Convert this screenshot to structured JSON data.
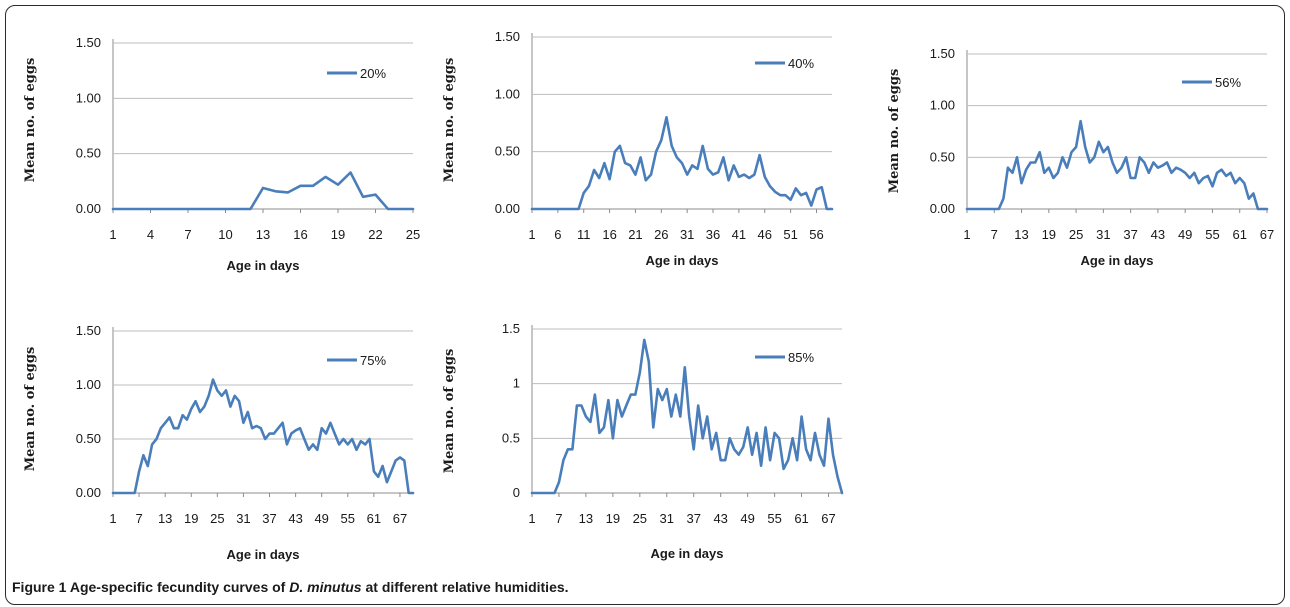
{
  "caption": {
    "label": "Figure 1",
    "text_before": "Age-specific fecundity curves of",
    "species": "D. minutus",
    "text_after": "at different relative humidities."
  },
  "colors": {
    "line": "#4a7ebb",
    "grid": "#bdbdbd",
    "axis": "#8c8c8c"
  },
  "chart_data": [
    {
      "type": "line",
      "series": [
        {
          "name": "20%"
        }
      ],
      "xlabel": "Age in days",
      "ylabel": "Mean no. of eggs",
      "ylim": [
        0,
        1.5
      ],
      "xlim": [
        1,
        25
      ],
      "xticks": [
        "1",
        "4",
        "7",
        "10",
        "13",
        "16",
        "19",
        "22",
        "25"
      ],
      "yticks": [
        "0.00",
        "0.50",
        "1.00",
        "1.50"
      ],
      "grid": "horizontal",
      "legend": "top-right",
      "x": [
        1,
        2,
        3,
        4,
        5,
        6,
        7,
        8,
        9,
        10,
        11,
        12,
        13,
        14,
        15,
        16,
        17,
        18,
        19,
        20,
        21,
        22,
        23,
        24,
        25
      ],
      "values": [
        0,
        0,
        0,
        0,
        0,
        0,
        0,
        0,
        0,
        0,
        0,
        0,
        0.19,
        0.16,
        0.15,
        0.21,
        0.21,
        0.29,
        0.22,
        0.33,
        0.11,
        0.13,
        0,
        0,
        0
      ]
    },
    {
      "type": "line",
      "series": [
        {
          "name": "40%"
        }
      ],
      "xlabel": "Age in days",
      "ylabel": "Mean no. of eggs",
      "ylim": [
        0,
        1.5
      ],
      "xlim": [
        1,
        59
      ],
      "xticks": [
        "1",
        "6",
        "11",
        "16",
        "21",
        "26",
        "31",
        "36",
        "41",
        "46",
        "51",
        "56"
      ],
      "yticks": [
        "0.00",
        "0.50",
        "1.00",
        "1.50"
      ],
      "grid": "horizontal",
      "legend": "top-right",
      "x": [
        1,
        2,
        3,
        4,
        5,
        6,
        7,
        8,
        9,
        10,
        11,
        12,
        13,
        14,
        15,
        16,
        17,
        18,
        19,
        20,
        21,
        22,
        23,
        24,
        25,
        26,
        27,
        28,
        29,
        30,
        31,
        32,
        33,
        34,
        35,
        36,
        37,
        38,
        39,
        40,
        41,
        42,
        43,
        44,
        45,
        46,
        47,
        48,
        49,
        50,
        51,
        52,
        53,
        54,
        55,
        56,
        57,
        58,
        59
      ],
      "values": [
        0,
        0,
        0,
        0,
        0,
        0,
        0,
        0,
        0,
        0,
        0.14,
        0.2,
        0.34,
        0.27,
        0.4,
        0.26,
        0.5,
        0.55,
        0.4,
        0.38,
        0.3,
        0.45,
        0.25,
        0.3,
        0.5,
        0.6,
        0.8,
        0.55,
        0.45,
        0.4,
        0.3,
        0.38,
        0.35,
        0.55,
        0.35,
        0.3,
        0.32,
        0.45,
        0.25,
        0.38,
        0.28,
        0.3,
        0.27,
        0.3,
        0.47,
        0.28,
        0.2,
        0.15,
        0.12,
        0.12,
        0.08,
        0.18,
        0.12,
        0.14,
        0.03,
        0.17,
        0.19,
        0,
        0
      ]
    },
    {
      "type": "line",
      "series": [
        {
          "name": "56%"
        }
      ],
      "xlabel": "Age in days",
      "ylabel": "Mean no. of eggs",
      "ylim": [
        0,
        1.5
      ],
      "xlim": [
        1,
        67
      ],
      "xticks": [
        "1",
        "7",
        "13",
        "19",
        "25",
        "31",
        "37",
        "43",
        "49",
        "55",
        "61",
        "67"
      ],
      "yticks": [
        "0.00",
        "0.50",
        "1.00",
        "1.50"
      ],
      "grid": "horizontal",
      "legend": "top-right",
      "x": [
        1,
        2,
        3,
        4,
        5,
        6,
        7,
        8,
        9,
        10,
        11,
        12,
        13,
        14,
        15,
        16,
        17,
        18,
        19,
        20,
        21,
        22,
        23,
        24,
        25,
        26,
        27,
        28,
        29,
        30,
        31,
        32,
        33,
        34,
        35,
        36,
        37,
        38,
        39,
        40,
        41,
        42,
        43,
        44,
        45,
        46,
        47,
        48,
        49,
        50,
        51,
        52,
        53,
        54,
        55,
        56,
        57,
        58,
        59,
        60,
        61,
        62,
        63,
        64,
        65,
        66,
        67
      ],
      "values": [
        0,
        0,
        0,
        0,
        0,
        0,
        0,
        0,
        0.1,
        0.4,
        0.35,
        0.5,
        0.25,
        0.38,
        0.45,
        0.45,
        0.55,
        0.35,
        0.4,
        0.3,
        0.35,
        0.5,
        0.4,
        0.55,
        0.6,
        0.85,
        0.6,
        0.45,
        0.5,
        0.65,
        0.55,
        0.6,
        0.45,
        0.35,
        0.4,
        0.5,
        0.3,
        0.3,
        0.5,
        0.45,
        0.35,
        0.45,
        0.4,
        0.42,
        0.45,
        0.35,
        0.4,
        0.38,
        0.35,
        0.3,
        0.35,
        0.25,
        0.3,
        0.32,
        0.22,
        0.35,
        0.38,
        0.32,
        0.35,
        0.25,
        0.3,
        0.25,
        0.1,
        0.15,
        0,
        0,
        0
      ]
    },
    {
      "type": "line",
      "series": [
        {
          "name": "75%"
        }
      ],
      "xlabel": "Age in days",
      "ylabel": "Mean no. of eggs",
      "ylim": [
        0,
        1.5
      ],
      "xlim": [
        1,
        70
      ],
      "xticks": [
        "1",
        "7",
        "13",
        "19",
        "25",
        "31",
        "37",
        "43",
        "49",
        "55",
        "61",
        "67"
      ],
      "yticks": [
        "0.00",
        "0.50",
        "1.00",
        "1.50"
      ],
      "grid": "horizontal",
      "legend": "top-right",
      "x": [
        1,
        2,
        3,
        4,
        5,
        6,
        7,
        8,
        9,
        10,
        11,
        12,
        13,
        14,
        15,
        16,
        17,
        18,
        19,
        20,
        21,
        22,
        23,
        24,
        25,
        26,
        27,
        28,
        29,
        30,
        31,
        32,
        33,
        34,
        35,
        36,
        37,
        38,
        39,
        40,
        41,
        42,
        43,
        44,
        45,
        46,
        47,
        48,
        49,
        50,
        51,
        52,
        53,
        54,
        55,
        56,
        57,
        58,
        59,
        60,
        61,
        62,
        63,
        64,
        65,
        66,
        67,
        68,
        69,
        70
      ],
      "values": [
        0,
        0,
        0,
        0,
        0,
        0,
        0.2,
        0.35,
        0.25,
        0.45,
        0.5,
        0.6,
        0.65,
        0.7,
        0.6,
        0.6,
        0.72,
        0.68,
        0.78,
        0.85,
        0.75,
        0.8,
        0.9,
        1.05,
        0.95,
        0.9,
        0.95,
        0.8,
        0.9,
        0.85,
        0.65,
        0.75,
        0.6,
        0.62,
        0.6,
        0.5,
        0.55,
        0.55,
        0.6,
        0.65,
        0.45,
        0.55,
        0.58,
        0.6,
        0.5,
        0.4,
        0.45,
        0.4,
        0.6,
        0.55,
        0.65,
        0.55,
        0.45,
        0.5,
        0.45,
        0.5,
        0.4,
        0.48,
        0.45,
        0.5,
        0.2,
        0.15,
        0.25,
        0.1,
        0.2,
        0.3,
        0.33,
        0.3,
        0,
        0
      ]
    },
    {
      "type": "line",
      "series": [
        {
          "name": "85%"
        }
      ],
      "xlabel": "Age in days",
      "ylabel": "Mean no. of eggs",
      "ylim": [
        0,
        1.5
      ],
      "xlim": [
        1,
        70
      ],
      "xticks": [
        "1",
        "7",
        "13",
        "19",
        "25",
        "31",
        "37",
        "43",
        "49",
        "55",
        "61",
        "67"
      ],
      "yticks": [
        "0",
        "0.5",
        "1",
        "1.5"
      ],
      "grid": "horizontal",
      "legend": "top-right",
      "x": [
        1,
        2,
        3,
        4,
        5,
        6,
        7,
        8,
        9,
        10,
        11,
        12,
        13,
        14,
        15,
        16,
        17,
        18,
        19,
        20,
        21,
        22,
        23,
        24,
        25,
        26,
        27,
        28,
        29,
        30,
        31,
        32,
        33,
        34,
        35,
        36,
        37,
        38,
        39,
        40,
        41,
        42,
        43,
        44,
        45,
        46,
        47,
        48,
        49,
        50,
        51,
        52,
        53,
        54,
        55,
        56,
        57,
        58,
        59,
        60,
        61,
        62,
        63,
        64,
        65,
        66,
        67,
        68,
        69,
        70
      ],
      "values": [
        0,
        0,
        0,
        0,
        0,
        0,
        0.1,
        0.3,
        0.4,
        0.4,
        0.8,
        0.8,
        0.7,
        0.65,
        0.9,
        0.55,
        0.6,
        0.85,
        0.5,
        0.85,
        0.7,
        0.8,
        0.9,
        0.9,
        1.1,
        1.4,
        1.2,
        0.6,
        0.95,
        0.85,
        0.95,
        0.7,
        0.9,
        0.7,
        1.15,
        0.7,
        0.4,
        0.8,
        0.5,
        0.7,
        0.4,
        0.55,
        0.3,
        0.3,
        0.5,
        0.4,
        0.35,
        0.42,
        0.6,
        0.35,
        0.55,
        0.25,
        0.6,
        0.3,
        0.55,
        0.5,
        0.22,
        0.3,
        0.5,
        0.3,
        0.7,
        0.4,
        0.3,
        0.55,
        0.35,
        0.25,
        0.68,
        0.35,
        0.15,
        0
      ]
    }
  ]
}
